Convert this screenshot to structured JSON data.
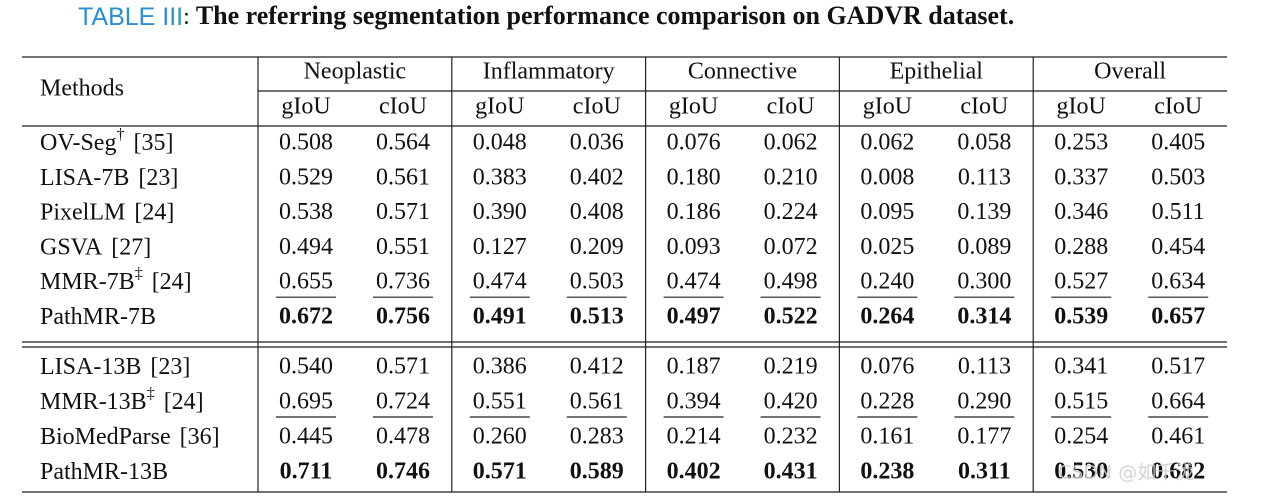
{
  "caption": {
    "label": "TABLE III",
    "separator": ":",
    "text": "The referring segmentation performance comparison on GADVR dataset."
  },
  "table": {
    "methods_header": "Methods",
    "groups": [
      {
        "name": "Neoplastic",
        "metrics": [
          "gIoU",
          "cIoU"
        ]
      },
      {
        "name": "Inflammatory",
        "metrics": [
          "gIoU",
          "cIoU"
        ]
      },
      {
        "name": "Connective",
        "metrics": [
          "gIoU",
          "cIoU"
        ]
      },
      {
        "name": "Epithelial",
        "metrics": [
          "gIoU",
          "cIoU"
        ]
      },
      {
        "name": "Overall",
        "metrics": [
          "gIoU",
          "cIoU"
        ]
      }
    ],
    "sections": [
      {
        "rows": [
          {
            "method": {
              "name": "OV-Seg",
              "sup": "†",
              "ref": "[35]"
            },
            "style": "normal",
            "values": [
              "0.508",
              "0.564",
              "0.048",
              "0.036",
              "0.076",
              "0.062",
              "0.062",
              "0.058",
              "0.253",
              "0.405"
            ]
          },
          {
            "method": {
              "name": "LISA-7B",
              "ref": "[23]"
            },
            "style": "normal",
            "values": [
              "0.529",
              "0.561",
              "0.383",
              "0.402",
              "0.180",
              "0.210",
              "0.008",
              "0.113",
              "0.337",
              "0.503"
            ]
          },
          {
            "method": {
              "name": "PixelLM",
              "ref": "[24]"
            },
            "style": "normal",
            "values": [
              "0.538",
              "0.571",
              "0.390",
              "0.408",
              "0.186",
              "0.224",
              "0.095",
              "0.139",
              "0.346",
              "0.511"
            ]
          },
          {
            "method": {
              "name": "GSVA",
              "ref": "[27]"
            },
            "style": "normal",
            "values": [
              "0.494",
              "0.551",
              "0.127",
              "0.209",
              "0.093",
              "0.072",
              "0.025",
              "0.089",
              "0.288",
              "0.454"
            ]
          },
          {
            "method": {
              "name": "MMR-7B",
              "sup": "‡",
              "ref": "[24]"
            },
            "style": "underline",
            "values": [
              "0.655",
              "0.736",
              "0.474",
              "0.503",
              "0.474",
              "0.498",
              "0.240",
              "0.300",
              "0.527",
              "0.634"
            ]
          },
          {
            "method": {
              "name": "PathMR-7B"
            },
            "style": "bold",
            "values": [
              "0.672",
              "0.756",
              "0.491",
              "0.513",
              "0.497",
              "0.522",
              "0.264",
              "0.314",
              "0.539",
              "0.657"
            ]
          }
        ]
      },
      {
        "rows": [
          {
            "method": {
              "name": "LISA-13B",
              "ref": "[23]"
            },
            "style": "normal",
            "values": [
              "0.540",
              "0.571",
              "0.386",
              "0.412",
              "0.187",
              "0.219",
              "0.076",
              "0.113",
              "0.341",
              "0.517"
            ]
          },
          {
            "method": {
              "name": "MMR-13B",
              "sup": "‡",
              "ref": "[24]"
            },
            "style": "underline",
            "values": [
              "0.695",
              "0.724",
              "0.551",
              "0.561",
              "0.394",
              "0.420",
              "0.228",
              "0.290",
              "0.515",
              "0.664"
            ]
          },
          {
            "method": {
              "name": "BioMedParse",
              "ref": "[36]"
            },
            "style": "normal",
            "values": [
              "0.445",
              "0.478",
              "0.260",
              "0.283",
              "0.214",
              "0.232",
              "0.161",
              "0.177",
              "0.254",
              "0.461"
            ]
          },
          {
            "method": {
              "name": "PathMR-13B"
            },
            "style": "bold",
            "values": [
              "0.711",
              "0.746",
              "0.571",
              "0.589",
              "0.402",
              "0.431",
              "0.238",
              "0.311",
              "0.530",
              "0.682"
            ]
          }
        ]
      }
    ]
  },
  "watermark": "CSDN @如千泷"
}
